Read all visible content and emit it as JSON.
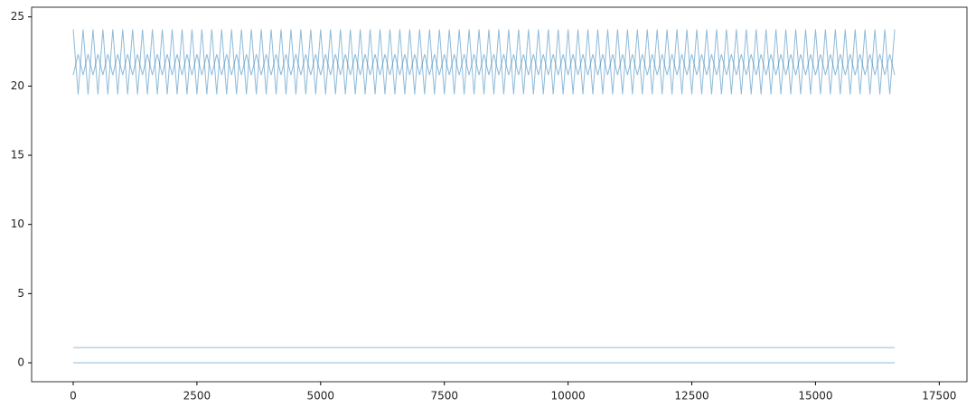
{
  "chart_data": {
    "type": "line",
    "x": [
      0,
      100,
      200,
      300,
      400,
      500,
      600,
      700,
      800,
      900,
      1000,
      1100,
      1200,
      1300,
      1400,
      1500,
      1600,
      1700,
      1800,
      1900,
      2000,
      2100,
      2200,
      2300,
      2400,
      2500,
      2600,
      2700,
      2800,
      2900,
      3000,
      3100,
      3200,
      3300,
      3400,
      3500,
      3600,
      3700,
      3800,
      3900,
      4000,
      4100,
      4200,
      4300,
      4400,
      4500,
      4600,
      4700,
      4800,
      4900,
      5000,
      5100,
      5200,
      5300,
      5400,
      5500,
      5600,
      5700,
      5800,
      5900,
      6000,
      6100,
      6200,
      6300,
      6400,
      6500,
      6600,
      6700,
      6800,
      6900,
      7000,
      7100,
      7200,
      7300,
      7400,
      7500,
      7600,
      7700,
      7800,
      7900,
      8000,
      8100,
      8200,
      8300,
      8400,
      8500,
      8600,
      8700,
      8800,
      8900,
      9000,
      9100,
      9200,
      9300,
      9400,
      9500,
      9600,
      9700,
      9800,
      9900,
      10000,
      10100,
      10200,
      10300,
      10400,
      10500,
      10600,
      10700,
      10800,
      10900,
      11000,
      11100,
      11200,
      11300,
      11400,
      11500,
      11600,
      11700,
      11800,
      11900,
      12000,
      12100,
      12200,
      12300,
      12400,
      12500,
      12600,
      12700,
      12800,
      12900,
      13000,
      13100,
      13200,
      13300,
      13400,
      13500,
      13600,
      13700,
      13800,
      13900,
      14000,
      14100,
      14200,
      14300,
      14400,
      14500,
      14600,
      14700,
      14800,
      14900,
      15000,
      15100,
      15200,
      15300,
      15400,
      15500,
      15600,
      15700,
      15800,
      15900,
      16000,
      16100,
      16200,
      16300,
      16400,
      16500,
      16600
    ],
    "series": [
      {
        "color": "#1f77b4",
        "values": [
          24.1,
          19.4,
          24.1,
          19.4,
          24.1,
          19.4,
          24.1,
          19.4,
          24.1,
          19.4,
          24.1,
          19.4,
          24.1,
          19.4,
          24.1,
          19.4,
          24.1,
          19.4,
          24.1,
          19.4,
          24.1,
          19.4,
          24.1,
          19.4,
          24.1,
          19.4,
          24.1,
          19.4,
          24.1,
          19.4,
          24.1,
          19.4,
          24.1,
          19.4,
          24.1,
          19.4,
          24.1,
          19.4,
          24.1,
          19.4,
          24.1,
          19.4,
          24.1,
          19.4,
          24.1,
          19.4,
          24.1,
          19.4,
          24.1,
          19.4,
          24.1,
          19.4,
          24.1,
          19.4,
          24.1,
          19.4,
          24.1,
          19.4,
          24.1,
          19.4,
          24.1,
          19.4,
          24.1,
          19.4,
          24.1,
          19.4,
          24.1,
          19.4,
          24.1,
          19.4,
          24.1,
          19.4,
          24.1,
          19.4,
          24.1,
          19.4,
          24.1,
          19.4,
          24.1,
          19.4,
          24.1,
          19.4,
          24.1,
          19.4,
          24.1,
          19.4,
          24.1,
          19.4,
          24.1,
          19.4,
          24.1,
          19.4,
          24.1,
          19.4,
          24.1,
          19.4,
          24.1,
          19.4,
          24.1,
          19.4,
          24.1,
          19.4,
          24.1,
          19.4,
          24.1,
          19.4,
          24.1,
          19.4,
          24.1,
          19.4,
          24.1,
          19.4,
          24.1,
          19.4,
          24.1,
          19.4,
          24.1,
          19.4,
          24.1,
          19.4,
          24.1,
          19.4,
          24.1,
          19.4,
          24.1,
          19.4,
          24.1,
          19.4,
          24.1,
          19.4,
          24.1,
          19.4,
          24.1,
          19.4,
          24.1,
          19.4,
          24.1,
          19.4,
          24.1,
          19.4,
          24.1,
          19.4,
          24.1,
          19.4,
          24.1,
          19.4,
          24.1,
          19.4,
          24.1,
          19.4,
          24.1,
          19.4,
          24.1,
          19.4,
          24.1,
          19.4,
          24.1,
          19.4,
          24.1,
          19.4,
          24.1,
          19.4,
          24.1,
          19.4,
          24.1,
          19.4,
          24.1
        ]
      },
      {
        "color": "#1f77b4",
        "values": [
          20.8,
          22.3,
          20.8,
          22.3,
          20.8,
          22.3,
          20.8,
          22.3,
          20.8,
          22.3,
          20.8,
          22.3,
          20.8,
          22.3,
          20.8,
          22.3,
          20.8,
          22.3,
          20.8,
          22.3,
          20.8,
          22.3,
          20.8,
          22.3,
          20.8,
          22.3,
          20.8,
          22.3,
          20.8,
          22.3,
          20.8,
          22.3,
          20.8,
          22.3,
          20.8,
          22.3,
          20.8,
          22.3,
          20.8,
          22.3,
          20.8,
          22.3,
          20.8,
          22.3,
          20.8,
          22.3,
          20.8,
          22.3,
          20.8,
          22.3,
          20.8,
          22.3,
          20.8,
          22.3,
          20.8,
          22.3,
          20.8,
          22.3,
          20.8,
          22.3,
          20.8,
          22.3,
          20.8,
          22.3,
          20.8,
          22.3,
          20.8,
          22.3,
          20.8,
          22.3,
          20.8,
          22.3,
          20.8,
          22.3,
          20.8,
          22.3,
          20.8,
          22.3,
          20.8,
          22.3,
          20.8,
          22.3,
          20.8,
          22.3,
          20.8,
          22.3,
          20.8,
          22.3,
          20.8,
          22.3,
          20.8,
          22.3,
          20.8,
          22.3,
          20.8,
          22.3,
          20.8,
          22.3,
          20.8,
          22.3,
          20.8,
          22.3,
          20.8,
          22.3,
          20.8,
          22.3,
          20.8,
          22.3,
          20.8,
          22.3,
          20.8,
          22.3,
          20.8,
          22.3,
          20.8,
          22.3,
          20.8,
          22.3,
          20.8,
          22.3,
          20.8,
          22.3,
          20.8,
          22.3,
          20.8,
          22.3,
          20.8,
          22.3,
          20.8,
          22.3,
          20.8,
          22.3,
          20.8,
          22.3,
          20.8,
          22.3,
          20.8,
          22.3,
          20.8,
          22.3,
          20.8,
          22.3,
          20.8,
          22.3,
          20.8,
          22.3,
          20.8,
          22.3,
          20.8,
          22.3,
          20.8,
          22.3,
          20.8,
          22.3,
          20.8,
          22.3,
          20.8,
          22.3,
          20.8,
          22.3,
          20.8,
          22.3,
          20.8,
          22.3,
          20.8,
          22.3,
          20.8
        ]
      },
      {
        "color": "#1f77b4",
        "x": [
          0,
          16600
        ],
        "values": [
          1.1,
          1.1
        ]
      },
      {
        "color": "#1f77b4",
        "x": [
          0,
          16600
        ],
        "values": [
          0,
          0
        ]
      }
    ],
    "xlim": [
      -840,
      18060
    ],
    "xticks": [
      0,
      2500,
      5000,
      7500,
      10000,
      12500,
      15000,
      17500
    ],
    "ylim": [
      -1.37,
      25.7
    ],
    "yticks": [
      0,
      5,
      10,
      15,
      20,
      25
    ]
  }
}
